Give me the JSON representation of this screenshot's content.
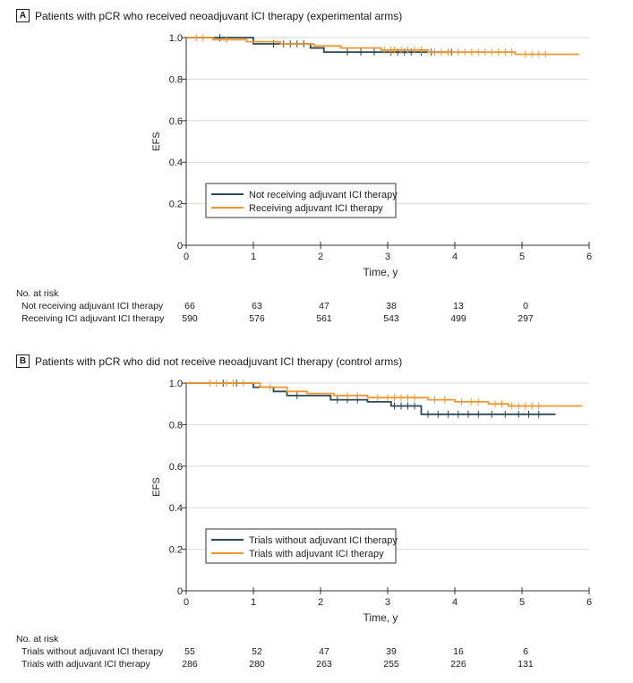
{
  "chart_data": [
    {
      "type": "line",
      "panel": "A",
      "title": "Patients with pCR who received neoadjuvant ICI therapy (experimental arms)",
      "xlabel": "Time, y",
      "ylabel": "EFS",
      "xlim": [
        0,
        6
      ],
      "ylim": [
        0,
        1.0
      ],
      "xticks": [
        "0",
        "1",
        "2",
        "3",
        "4",
        "5",
        "6"
      ],
      "yticks": [
        "0",
        "0.2",
        "0.4",
        "0.6",
        "0.8",
        "1.0"
      ],
      "legend": "bottom-left",
      "series": [
        {
          "name": "Not receiving adjuvant ICI therapy",
          "color": "#2b4a55",
          "points": [
            [
              0,
              1.0
            ],
            [
              1.0,
              1.0
            ],
            [
              1.0,
              0.97
            ],
            [
              1.85,
              0.97
            ],
            [
              1.85,
              0.95
            ],
            [
              2.05,
              0.95
            ],
            [
              2.05,
              0.93
            ],
            [
              3.95,
              0.93
            ]
          ],
          "censors": [
            [
              0.5,
              1.0
            ],
            [
              1.3,
              0.97
            ],
            [
              1.45,
              0.97
            ],
            [
              1.55,
              0.97
            ],
            [
              1.65,
              0.97
            ],
            [
              1.75,
              0.97
            ],
            [
              2.4,
              0.93
            ],
            [
              2.6,
              0.93
            ],
            [
              2.8,
              0.93
            ],
            [
              3.05,
              0.93
            ],
            [
              3.15,
              0.93
            ],
            [
              3.25,
              0.93
            ],
            [
              3.35,
              0.93
            ],
            [
              3.5,
              0.93
            ],
            [
              3.65,
              0.93
            ],
            [
              3.8,
              0.93
            ],
            [
              3.95,
              0.93
            ]
          ]
        },
        {
          "name": "Receiving adjuvant ICI therapy",
          "color": "#f0962e",
          "points": [
            [
              0,
              1.0
            ],
            [
              0.4,
              1.0
            ],
            [
              0.4,
              0.99
            ],
            [
              0.9,
              0.99
            ],
            [
              0.9,
              0.98
            ],
            [
              1.4,
              0.98
            ],
            [
              1.4,
              0.97
            ],
            [
              1.9,
              0.97
            ],
            [
              1.9,
              0.96
            ],
            [
              2.3,
              0.96
            ],
            [
              2.3,
              0.95
            ],
            [
              2.9,
              0.95
            ],
            [
              2.9,
              0.94
            ],
            [
              3.6,
              0.94
            ],
            [
              3.6,
              0.93
            ],
            [
              4.9,
              0.93
            ],
            [
              4.9,
              0.92
            ],
            [
              5.85,
              0.92
            ]
          ],
          "censors": [
            [
              0.15,
              1.0
            ],
            [
              0.25,
              1.0
            ],
            [
              0.6,
              0.99
            ],
            [
              2.95,
              0.94
            ],
            [
              3.05,
              0.94
            ],
            [
              3.1,
              0.94
            ],
            [
              3.2,
              0.94
            ],
            [
              3.3,
              0.94
            ],
            [
              3.4,
              0.94
            ],
            [
              3.5,
              0.94
            ],
            [
              3.7,
              0.93
            ],
            [
              3.8,
              0.93
            ],
            [
              3.9,
              0.93
            ],
            [
              4.05,
              0.93
            ],
            [
              4.15,
              0.93
            ],
            [
              4.25,
              0.93
            ],
            [
              4.35,
              0.93
            ],
            [
              4.45,
              0.93
            ],
            [
              4.55,
              0.93
            ],
            [
              4.65,
              0.93
            ],
            [
              4.75,
              0.93
            ],
            [
              4.85,
              0.93
            ],
            [
              5.05,
              0.92
            ],
            [
              5.15,
              0.92
            ],
            [
              5.25,
              0.92
            ],
            [
              5.35,
              0.92
            ]
          ]
        }
      ],
      "risk_table": {
        "title": "No. at risk",
        "times": [
          0,
          1,
          2,
          3,
          4,
          5
        ],
        "rows": [
          {
            "label": "Not receiving adjuvant ICI therapy",
            "values": [
              "66",
              "63",
              "47",
              "38",
              "13",
              "0"
            ]
          },
          {
            "label": "Receiving ICI adjuvant ICI therapy",
            "values": [
              "590",
              "576",
              "561",
              "543",
              "499",
              "297"
            ]
          }
        ]
      }
    },
    {
      "type": "line",
      "panel": "B",
      "title": "Patients with pCR who did not receive neoadjuvant ICI therapy (control arms)",
      "xlabel": "Time, y",
      "ylabel": "EFS",
      "xlim": [
        0,
        6
      ],
      "ylim": [
        0,
        1.0
      ],
      "xticks": [
        "0",
        "1",
        "2",
        "3",
        "4",
        "5",
        "6"
      ],
      "yticks": [
        "0",
        "0.2",
        "0.4",
        "0.6",
        "0.8",
        "1.0"
      ],
      "legend": "bottom-left",
      "series": [
        {
          "name": "Trials without adjuvant ICI therapy",
          "color": "#2b4a55",
          "points": [
            [
              0,
              1.0
            ],
            [
              1.0,
              1.0
            ],
            [
              1.0,
              0.98
            ],
            [
              1.3,
              0.98
            ],
            [
              1.3,
              0.96
            ],
            [
              1.5,
              0.96
            ],
            [
              1.5,
              0.94
            ],
            [
              2.15,
              0.94
            ],
            [
              2.15,
              0.92
            ],
            [
              2.7,
              0.92
            ],
            [
              2.7,
              0.91
            ],
            [
              3.05,
              0.91
            ],
            [
              3.05,
              0.89
            ],
            [
              3.5,
              0.89
            ],
            [
              3.5,
              0.85
            ],
            [
              5.5,
              0.85
            ]
          ],
          "censors": [
            [
              0.55,
              1.0
            ],
            [
              0.75,
              1.0
            ],
            [
              1.65,
              0.94
            ],
            [
              2.25,
              0.92
            ],
            [
              2.4,
              0.92
            ],
            [
              2.55,
              0.92
            ],
            [
              3.1,
              0.89
            ],
            [
              3.2,
              0.89
            ],
            [
              3.3,
              0.89
            ],
            [
              3.4,
              0.89
            ],
            [
              3.6,
              0.85
            ],
            [
              3.75,
              0.85
            ],
            [
              3.9,
              0.85
            ],
            [
              4.05,
              0.85
            ],
            [
              4.2,
              0.85
            ],
            [
              4.35,
              0.85
            ],
            [
              4.55,
              0.85
            ],
            [
              4.75,
              0.85
            ],
            [
              4.95,
              0.85
            ],
            [
              5.1,
              0.85
            ],
            [
              5.25,
              0.85
            ]
          ]
        },
        {
          "name": "Trials with adjuvant ICI therapy",
          "color": "#f0962e",
          "points": [
            [
              0,
              1.0
            ],
            [
              1.1,
              1.0
            ],
            [
              1.1,
              0.98
            ],
            [
              1.5,
              0.98
            ],
            [
              1.5,
              0.96
            ],
            [
              1.8,
              0.96
            ],
            [
              1.8,
              0.95
            ],
            [
              2.2,
              0.95
            ],
            [
              2.2,
              0.94
            ],
            [
              2.7,
              0.94
            ],
            [
              2.7,
              0.93
            ],
            [
              3.6,
              0.93
            ],
            [
              3.6,
              0.92
            ],
            [
              4.0,
              0.92
            ],
            [
              4.0,
              0.91
            ],
            [
              4.5,
              0.91
            ],
            [
              4.5,
              0.9
            ],
            [
              4.8,
              0.9
            ],
            [
              4.8,
              0.89
            ],
            [
              5.9,
              0.89
            ]
          ],
          "censors": [
            [
              0.35,
              1.0
            ],
            [
              0.45,
              1.0
            ],
            [
              0.6,
              1.0
            ],
            [
              0.7,
              1.0
            ],
            [
              0.85,
              1.0
            ],
            [
              1.25,
              0.98
            ],
            [
              2.4,
              0.94
            ],
            [
              2.55,
              0.94
            ],
            [
              2.85,
              0.93
            ],
            [
              3.0,
              0.93
            ],
            [
              3.1,
              0.93
            ],
            [
              3.2,
              0.93
            ],
            [
              3.3,
              0.93
            ],
            [
              3.4,
              0.93
            ],
            [
              3.7,
              0.92
            ],
            [
              3.85,
              0.92
            ],
            [
              4.1,
              0.91
            ],
            [
              4.25,
              0.91
            ],
            [
              4.35,
              0.91
            ],
            [
              4.6,
              0.9
            ],
            [
              4.7,
              0.9
            ],
            [
              4.85,
              0.89
            ],
            [
              4.95,
              0.89
            ],
            [
              5.05,
              0.89
            ],
            [
              5.15,
              0.89
            ],
            [
              5.25,
              0.89
            ]
          ]
        }
      ],
      "risk_table": {
        "title": "No. at risk",
        "times": [
          0,
          1,
          2,
          3,
          4,
          5
        ],
        "rows": [
          {
            "label": "Trials without adjuvant ICI therapy",
            "values": [
              "55",
              "52",
              "47",
              "39",
              "16",
              "6"
            ]
          },
          {
            "label": "Trials with adjuvant ICI therapy",
            "values": [
              "286",
              "280",
              "263",
              "255",
              "226",
              "131"
            ]
          }
        ]
      }
    }
  ]
}
